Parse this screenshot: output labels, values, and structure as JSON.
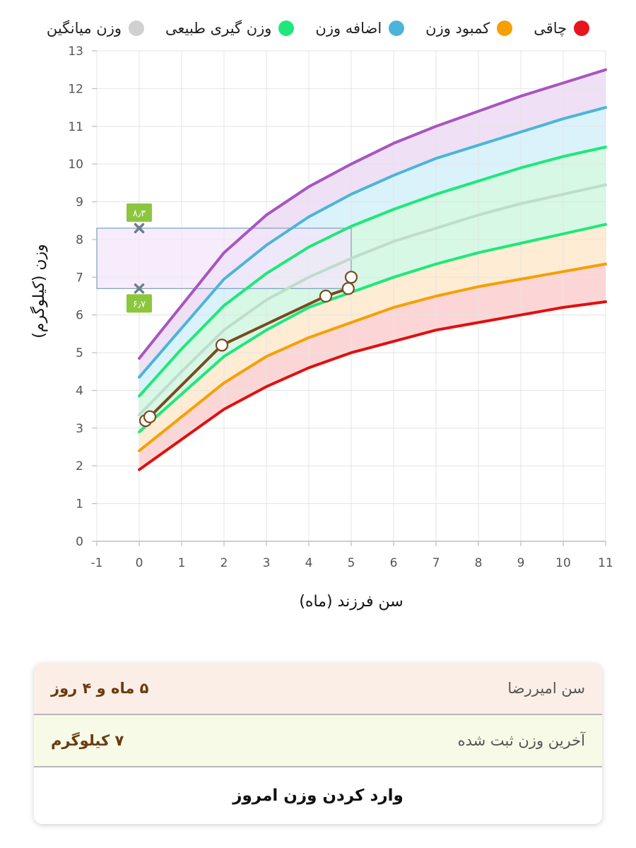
{
  "legend": [
    {
      "label": "چاقی",
      "color": "#e8141e"
    },
    {
      "label": "کمبود وزن",
      "color": "#f5a000"
    },
    {
      "label": "اضافه وزن",
      "color": "#4ab5d8"
    },
    {
      "label": "وزن گیری طبیعی",
      "color": "#1ee87a"
    },
    {
      "label": "وزن میانگین",
      "color": "#d0d0d0"
    }
  ],
  "chart_data": {
    "type": "line",
    "xlabel": "سن فرزند (ماه)",
    "ylabel": "وزن (کیلوگرم)",
    "xlim": [
      -1,
      11
    ],
    "ylim": [
      0,
      13
    ],
    "x_ticks": [
      "-1",
      "0",
      "1",
      "2",
      "3",
      "4",
      "5",
      "6",
      "7",
      "8",
      "9",
      "10",
      "11"
    ],
    "y_ticks": [
      "0",
      "1",
      "2",
      "3",
      "4",
      "5",
      "6",
      "7",
      "8",
      "9",
      "10",
      "11",
      "12",
      "13"
    ],
    "grid": true,
    "x": [
      0,
      1,
      2,
      3,
      4,
      5,
      6,
      7,
      8,
      9,
      10,
      11
    ],
    "series": [
      {
        "color": "#e01010",
        "values": [
          1.9,
          2.7,
          3.5,
          4.1,
          4.6,
          5.0,
          5.3,
          5.6,
          5.8,
          6.0,
          6.2,
          6.35
        ]
      },
      {
        "color": "#f5a000",
        "values": [
          2.4,
          3.3,
          4.2,
          4.9,
          5.4,
          5.8,
          6.2,
          6.5,
          6.75,
          6.95,
          7.15,
          7.35
        ]
      },
      {
        "color": "#1ee87a",
        "values": [
          2.9,
          3.9,
          4.9,
          5.6,
          6.2,
          6.6,
          7.0,
          7.35,
          7.65,
          7.9,
          8.15,
          8.4
        ]
      },
      {
        "color": "#bfdccd",
        "values": [
          3.35,
          4.5,
          5.6,
          6.4,
          7.0,
          7.5,
          7.95,
          8.3,
          8.65,
          8.95,
          9.2,
          9.45
        ]
      },
      {
        "color": "#1ee87a",
        "values": [
          3.85,
          5.1,
          6.25,
          7.1,
          7.8,
          8.35,
          8.8,
          9.2,
          9.55,
          9.9,
          10.2,
          10.45
        ]
      },
      {
        "color": "#4ab5d8",
        "values": [
          4.35,
          5.65,
          6.95,
          7.85,
          8.6,
          9.2,
          9.7,
          10.15,
          10.5,
          10.85,
          11.2,
          11.5
        ]
      },
      {
        "color": "#a855c0",
        "values": [
          4.85,
          6.25,
          7.65,
          8.65,
          9.4,
          10.0,
          10.55,
          11.0,
          11.4,
          11.8,
          12.15,
          12.5
        ]
      }
    ],
    "bands": [
      {
        "from": 0,
        "to": 1,
        "color": "#fbc8c8"
      },
      {
        "from": 1,
        "to": 2,
        "color": "#fde6c6"
      },
      {
        "from": 2,
        "to": 4,
        "color": "#c8f6dc"
      },
      {
        "from": 4,
        "to": 5,
        "color": "#cdeef8"
      },
      {
        "from": 5,
        "to": 6,
        "color": "#ead6f2"
      }
    ],
    "child": {
      "color": "#7a4a1e",
      "x": [
        0.15,
        0.25,
        1.95,
        4.4,
        4.93,
        5.0
      ],
      "y": [
        3.2,
        3.3,
        5.2,
        6.5,
        6.7,
        7.0
      ]
    },
    "normal_range_at_current_age": {
      "x": 5,
      "low": 6.7,
      "high": 8.3,
      "low_label": "۶٫۷",
      "high_label": "۸٫۳",
      "rect_fill": "#f3e6fa",
      "rect_stroke": "#7aa0b8",
      "marker_color": "#6e7f8c",
      "badge_color": "#8cc63f"
    }
  },
  "info": {
    "age_label": "سن امیررضا",
    "age_value": "۵ ماه و ۴ روز",
    "weight_label": "آخرین وزن ثبت شده",
    "weight_value": "۷ کیلوگرم",
    "action_label": "وارد کردن وزن امروز"
  }
}
